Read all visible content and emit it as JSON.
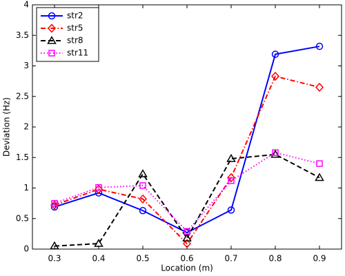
{
  "chart_data": {
    "type": "line",
    "x_label": "Location (m)",
    "y_label": "Deviation (Hz)",
    "x": [
      0.3,
      0.4,
      0.5,
      0.6,
      0.7,
      0.8,
      0.9
    ],
    "xlim": [
      0.25,
      0.95
    ],
    "xticks": [
      0.3,
      0.4,
      0.5,
      0.6,
      0.7,
      0.8,
      0.9
    ],
    "ylim": [
      0,
      4
    ],
    "yticks": [
      0,
      0.5,
      1,
      1.5,
      2,
      2.5,
      3,
      3.5,
      4
    ],
    "legend": "top-left",
    "grid": false,
    "series": [
      {
        "name": "str2",
        "color": "#0000ff",
        "marker": "circle",
        "line_style": "solid",
        "values": [
          0.69,
          0.92,
          0.63,
          0.27,
          0.64,
          3.19,
          3.32
        ]
      },
      {
        "name": "str5",
        "color": "#ff0000",
        "marker": "diamond",
        "line_style": "dashdot",
        "values": [
          0.72,
          0.98,
          0.82,
          0.09,
          1.17,
          2.83,
          2.65
        ]
      },
      {
        "name": "str8",
        "color": "#000000",
        "marker": "triangle",
        "line_style": "dashed",
        "values": [
          0.05,
          0.09,
          1.23,
          0.18,
          1.48,
          1.55,
          1.17
        ]
      },
      {
        "name": "str11",
        "color": "#ff00ff",
        "marker": "square",
        "line_style": "dotted",
        "values": [
          0.75,
          1.01,
          1.04,
          0.29,
          1.12,
          1.58,
          1.4
        ]
      }
    ]
  }
}
